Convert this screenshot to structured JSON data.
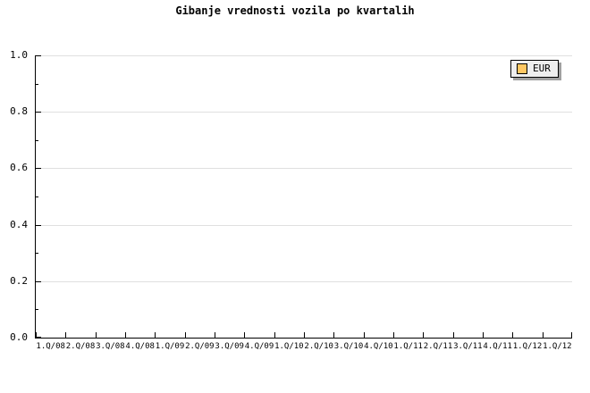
{
  "title": "Gibanje vrednosti vozila po kvartalih",
  "legend": {
    "position": "top-right",
    "items": [
      {
        "label": "EUR",
        "swatch_color": "#FFC864"
      }
    ]
  },
  "colors": {
    "background": "#FFFFFF",
    "axis": "#000000",
    "gridline": "#E0E0E0",
    "text": "#000000",
    "legend_background": "#EEEEEE",
    "legend_shadow": "#A0A0A0",
    "series_eur": "#FFC864"
  },
  "chart_data": {
    "type": "line",
    "title": "Gibanje vrednosti vozila po kvartalih",
    "categories": [
      "1.Q/08",
      "2.Q/08",
      "3.Q/08",
      "4.Q/08",
      "1.Q/09",
      "2.Q/09",
      "3.Q/09",
      "4.Q/09",
      "1.Q/10",
      "2.Q/10",
      "3.Q/10",
      "4.Q/10",
      "1.Q/11",
      "2.Q/11",
      "3.Q/11",
      "4.Q/11",
      "1.Q/12",
      "1.Q/12"
    ],
    "series": [
      {
        "name": "EUR",
        "color": "#FFC864",
        "values": []
      }
    ],
    "xlabel": "",
    "ylabel": "",
    "ylim": [
      0.0,
      1.0
    ],
    "y_tick_labels": [
      "0.0",
      "0.2",
      "0.4",
      "0.6",
      "0.8",
      "1.0"
    ],
    "y_major_tick_interval": 0.2,
    "y_minor_tick_interval": 0.1,
    "grid": "horizontal-major-only",
    "legend_position": "top-right"
  }
}
